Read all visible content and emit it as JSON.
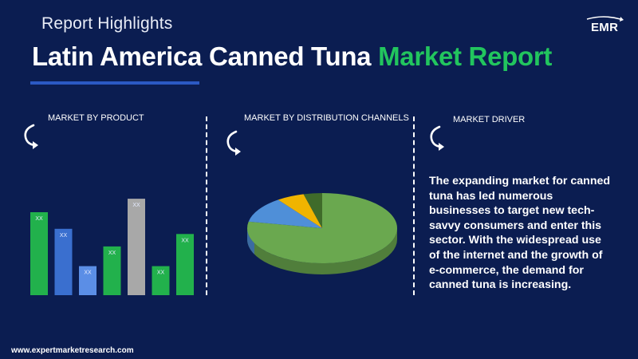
{
  "header": {
    "subtitle": "Report Highlights",
    "title_main": "Latin America Canned Tuna ",
    "title_accent": "Market Report",
    "accent_color": "#22c55e",
    "underline_color": "#2b59c3"
  },
  "logo": {
    "text": "EMR",
    "icon": "emr-logo-icon"
  },
  "sections": {
    "product": {
      "label": "MARKET BY PRODUCT",
      "icon": "curved-arrow-icon"
    },
    "distribution": {
      "label": "MARKET BY DISTRIBUTION CHANNELS",
      "icon": "curved-arrow-icon"
    },
    "driver": {
      "label": "MARKET DRIVER",
      "icon": "curved-arrow-icon",
      "text": "The expanding market for canned tuna has led numerous businesses to target new tech-savvy consumers and enter this sector. With the widespread use of the internet and the growth of e-commerce, the demand for canned tuna is increasing."
    }
  },
  "chart_data": [
    {
      "type": "bar",
      "categories": [
        "",
        "",
        "",
        "",
        "",
        "",
        ""
      ],
      "values": [
        0.8,
        0.64,
        0.28,
        0.47,
        0.93,
        0.28,
        0.59
      ],
      "labels": [
        "XX",
        "XX",
        "XX",
        "XX",
        "XX",
        "XX",
        "XX"
      ],
      "colors": [
        "#22b14c",
        "#3a6fcf",
        "#5b8ee6",
        "#22b14c",
        "#a8a8a8",
        "#22b14c",
        "#22b14c"
      ],
      "ylim": [
        0,
        1
      ]
    },
    {
      "type": "pie",
      "values": [
        0.78,
        0.12,
        0.06,
        0.04
      ],
      "colors": [
        "#6aa84f",
        "#4f8fd8",
        "#f0b400",
        "#3f6b2a"
      ]
    }
  ],
  "footer": {
    "url": "www.expertmarketresearch.com"
  }
}
